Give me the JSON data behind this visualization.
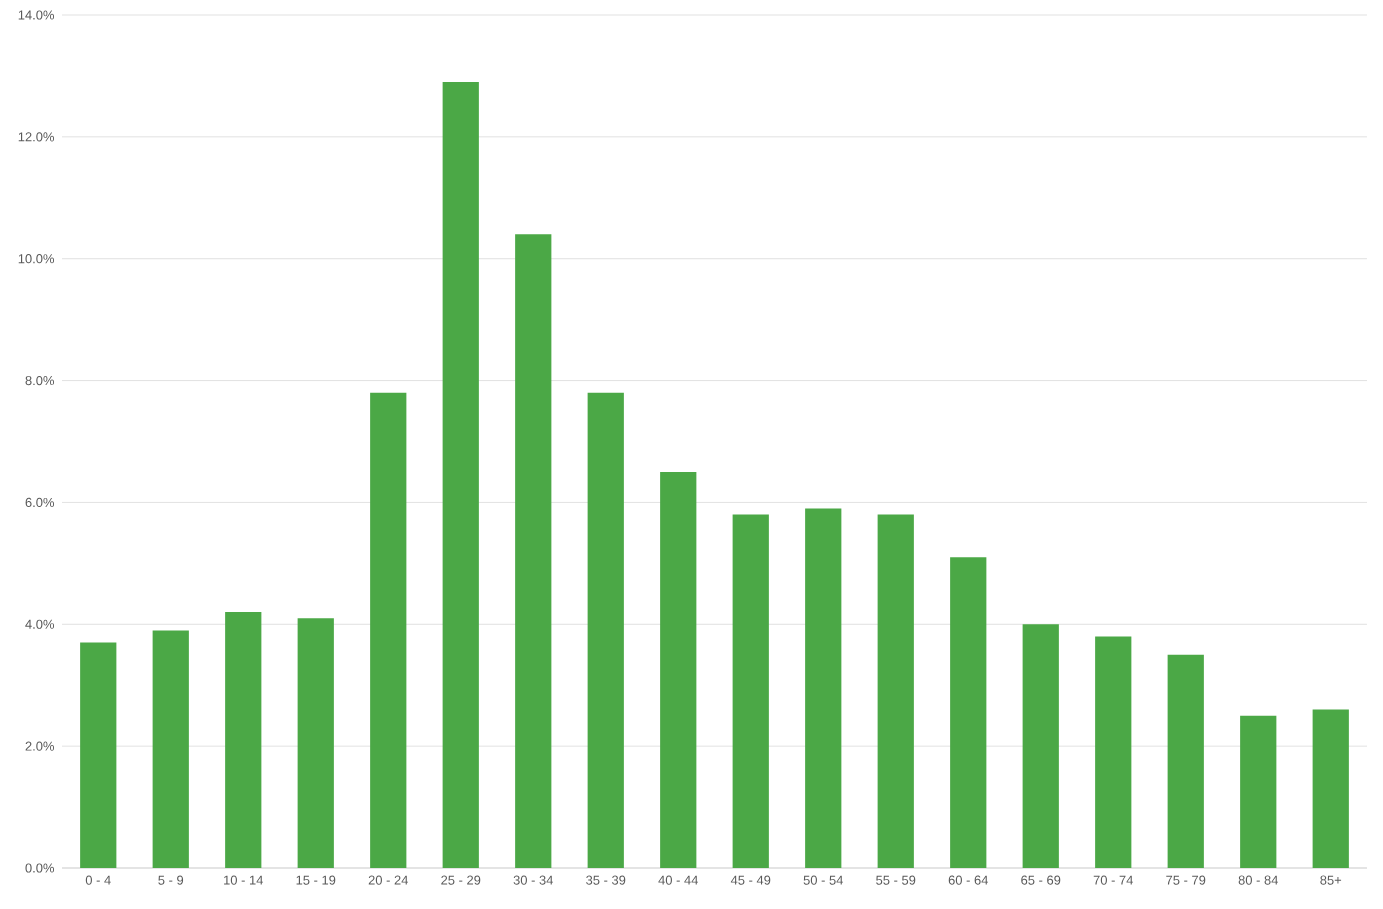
{
  "chart_data": {
    "type": "bar",
    "categories": [
      "0 - 4",
      "5 - 9",
      "10 - 14",
      "15 - 19",
      "20 - 24",
      "25 - 29",
      "30 - 34",
      "35 - 39",
      "40 - 44",
      "45 - 49",
      "50 - 54",
      "55 - 59",
      "60 - 64",
      "65 - 69",
      "70 - 74",
      "75 - 79",
      "80 - 84",
      "85+"
    ],
    "values": [
      3.7,
      3.9,
      4.2,
      4.1,
      7.8,
      12.9,
      10.4,
      7.8,
      6.5,
      5.8,
      5.9,
      5.8,
      5.1,
      4.0,
      3.8,
      3.5,
      2.5,
      2.6
    ],
    "color": "#4ba846",
    "ylim": [
      0,
      14
    ],
    "yticks": [
      {
        "value": 0,
        "label": "0.0%"
      },
      {
        "value": 2,
        "label": "2.0%"
      },
      {
        "value": 4,
        "label": "4.0%"
      },
      {
        "value": 6,
        "label": "6.0%"
      },
      {
        "value": 8,
        "label": "8.0%"
      },
      {
        "value": 10,
        "label": "10.0%"
      },
      {
        "value": 12,
        "label": "12.0%"
      },
      {
        "value": 14,
        "label": "14.0%"
      }
    ],
    "grid": "y"
  }
}
